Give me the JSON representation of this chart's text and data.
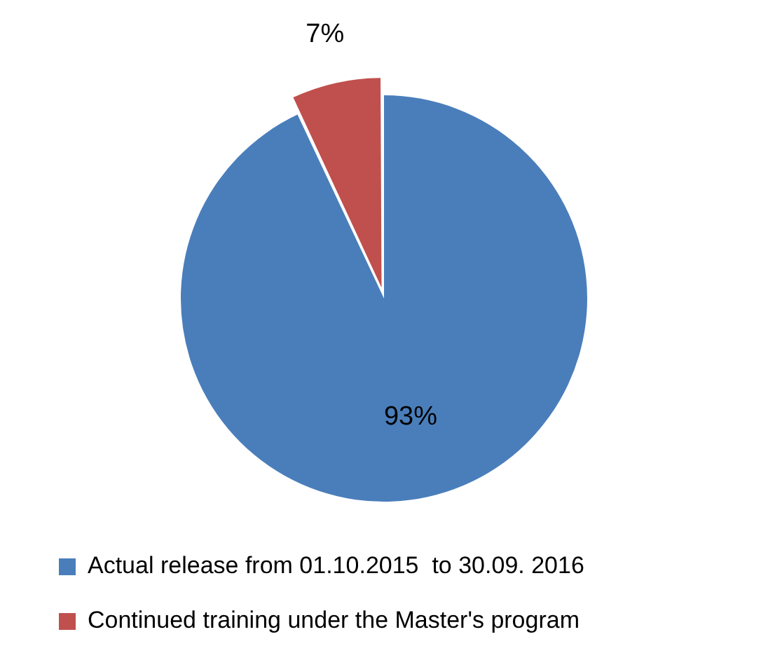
{
  "chart_data": {
    "type": "pie",
    "categories": [
      "Actual release from 01.10.2015  to 30.09. 2016",
      "Continued training under the Master's program"
    ],
    "values": [
      93,
      7
    ],
    "value_labels": [
      "93%",
      "7%"
    ],
    "colors": [
      "#4a7ebb",
      "#c0504d"
    ],
    "legend": "bottom"
  }
}
